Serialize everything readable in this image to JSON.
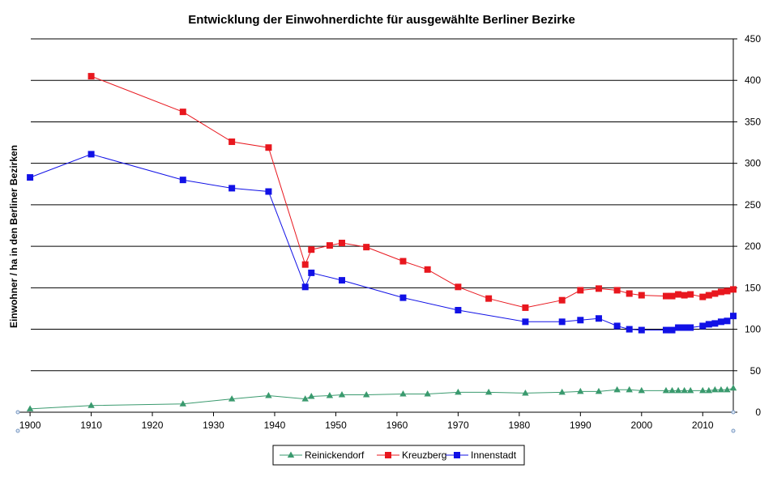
{
  "chart_data": {
    "type": "line",
    "title": "Entwicklung der Einwohnerdichte für ausgewählte Berliner Bezirke",
    "xlabel": "",
    "ylabel": "Einwohner / ha in den Berliner Bezirken",
    "xlim": [
      1898,
      2015
    ],
    "ylim": [
      0,
      450
    ],
    "x_ticks": [
      1900,
      1910,
      1920,
      1930,
      1940,
      1950,
      1960,
      1970,
      1980,
      1990,
      2000,
      2010
    ],
    "y_ticks": [
      0,
      50,
      100,
      150,
      200,
      250,
      300,
      350,
      400,
      450
    ],
    "grid": "horizontal",
    "y_axis_side": "right",
    "legend_position": "bottom-center",
    "series": [
      {
        "name": "Reinickendorf",
        "color": "#3a9a6e",
        "marker": "triangle",
        "x": [
          1900,
          1910,
          1925,
          1933,
          1939,
          1945,
          1946,
          1949,
          1951,
          1955,
          1961,
          1965,
          1970,
          1975,
          1981,
          1987,
          1990,
          1993,
          1996,
          1998,
          2000,
          2004,
          2005,
          2006,
          2007,
          2008,
          2010,
          2011,
          2012,
          2013,
          2014,
          2015
        ],
        "values": [
          4,
          8,
          10,
          16,
          20,
          16,
          19,
          20,
          21,
          21,
          22,
          22,
          24,
          24,
          23,
          24,
          25,
          25,
          27,
          27,
          26,
          26,
          26,
          26,
          26,
          26,
          26,
          26,
          27,
          27,
          27,
          29
        ]
      },
      {
        "name": "Kreuzberg",
        "color": "#e8171e",
        "marker": "square",
        "x": [
          1910,
          1925,
          1933,
          1939,
          1945,
          1946,
          1949,
          1951,
          1955,
          1961,
          1965,
          1970,
          1975,
          1981,
          1987,
          1990,
          1993,
          1996,
          1998,
          2000,
          2004,
          2005,
          2006,
          2007,
          2008,
          2010,
          2011,
          2012,
          2013,
          2014,
          2015
        ],
        "values": [
          405,
          362,
          326,
          319,
          178,
          196,
          201,
          204,
          199,
          182,
          172,
          151,
          137,
          126,
          135,
          147,
          149,
          147,
          143,
          141,
          140,
          140,
          142,
          141,
          142,
          139,
          141,
          143,
          145,
          146,
          148
        ]
      },
      {
        "name": "Innenstadt",
        "color": "#1111e6",
        "marker": "square",
        "x": [
          1900,
          1910,
          1925,
          1933,
          1939,
          1945,
          1946,
          1951,
          1961,
          1970,
          1981,
          1987,
          1990,
          1993,
          1996,
          1998,
          2000,
          2004,
          2005,
          2006,
          2007,
          2008,
          2010,
          2011,
          2012,
          2013,
          2014,
          2015
        ],
        "values": [
          283,
          311,
          280,
          270,
          266,
          151,
          168,
          159,
          138,
          123,
          109,
          109,
          111,
          113,
          104,
          100,
          99,
          99,
          99,
          102,
          102,
          102,
          104,
          106,
          107,
          109,
          110,
          116
        ]
      }
    ]
  }
}
